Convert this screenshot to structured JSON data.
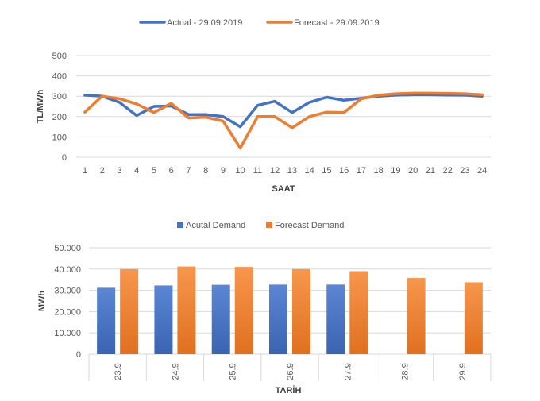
{
  "chart_data": [
    {
      "type": "line",
      "legend_position": "top",
      "xlabel": "SAAT",
      "ylabel": "TL/MWh",
      "ylim": [
        0,
        500
      ],
      "yticks": [
        "0",
        "100",
        "200",
        "300",
        "400",
        "500"
      ],
      "grid": true,
      "categories": [
        "1",
        "2",
        "3",
        "4",
        "5",
        "6",
        "7",
        "8",
        "9",
        "10",
        "11",
        "12",
        "13",
        "14",
        "15",
        "16",
        "17",
        "18",
        "19",
        "20",
        "21",
        "22",
        "23",
        "24"
      ],
      "series": [
        {
          "name": "Actual - 29.09.2019",
          "color": "#4472C4",
          "values": [
            305,
            300,
            270,
            205,
            250,
            252,
            210,
            210,
            200,
            150,
            255,
            275,
            220,
            270,
            295,
            280,
            290,
            300,
            305,
            308,
            308,
            306,
            305,
            300
          ]
        },
        {
          "name": "Forecast - 29.09.2019",
          "color": "#ED7D31",
          "values": [
            222,
            300,
            288,
            262,
            220,
            265,
            193,
            197,
            178,
            45,
            200,
            200,
            145,
            200,
            222,
            220,
            287,
            305,
            312,
            315,
            315,
            314,
            312,
            307
          ]
        }
      ]
    },
    {
      "type": "bar",
      "legend_position": "top",
      "xlabel": "TARİH",
      "ylabel": "MWh",
      "ylim": [
        0,
        50000
      ],
      "yticks": [
        "0",
        "10.000",
        "20.000",
        "30.000",
        "40.000",
        "50.000"
      ],
      "grid": true,
      "categories": [
        "23.9",
        "24.9",
        "25.9",
        "26.9",
        "27.9",
        "28.9",
        "29.9"
      ],
      "series": [
        {
          "name": "Acutal Demand",
          "color": "#4472C4",
          "values": [
            31200,
            32300,
            32600,
            32700,
            32700,
            null,
            null
          ]
        },
        {
          "name": "Forecast Demand",
          "color": "#ED7D31",
          "values": [
            40000,
            41200,
            41000,
            40000,
            39000,
            35800,
            33800
          ]
        }
      ]
    }
  ]
}
